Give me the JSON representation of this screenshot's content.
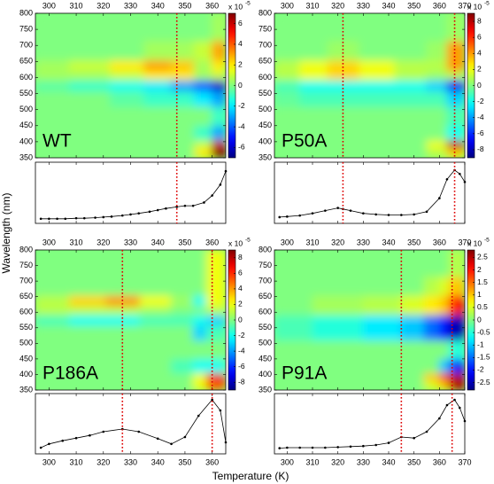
{
  "figure": {
    "xlabel": "Temperature (K)",
    "ylabel": "Wavelength (nm)"
  },
  "chart_data": [
    {
      "type": "heatmap",
      "label": "WT",
      "xlim": [
        295,
        365
      ],
      "xticks": [
        300,
        310,
        320,
        330,
        340,
        350,
        360
      ],
      "ylim": [
        350,
        800
      ],
      "yticks": [
        350,
        400,
        450,
        500,
        550,
        600,
        650,
        700,
        750,
        800
      ],
      "clim": [
        -7,
        7
      ],
      "cticks": [
        -6,
        -4,
        -2,
        0,
        2,
        4,
        6
      ],
      "colorbar_label": "x 10",
      "colorbar_exponent": "-5",
      "x": [
        300,
        315,
        330,
        340,
        350,
        357,
        363
      ],
      "y": [
        370,
        390,
        420,
        480,
        540,
        575,
        610,
        630,
        680,
        750
      ],
      "z": [
        [
          0,
          0,
          0,
          0,
          0,
          2,
          7
        ],
        [
          0,
          0,
          0,
          0,
          0,
          1,
          6
        ],
        [
          0,
          0,
          0,
          0,
          0,
          -1,
          -3
        ],
        [
          0,
          0,
          0,
          0,
          0,
          0,
          -1
        ],
        [
          0,
          0,
          -0.5,
          -1,
          -1,
          -2,
          -3
        ],
        [
          -0.5,
          -1,
          -1.5,
          -2,
          -3,
          -4,
          -6
        ],
        [
          0.5,
          0.5,
          1,
          2,
          2,
          0.5,
          1
        ],
        [
          0.5,
          1,
          2,
          3,
          2.5,
          0.5,
          2
        ],
        [
          0,
          0,
          0,
          0.5,
          0.5,
          1,
          3
        ],
        [
          0,
          0,
          0,
          0,
          0,
          0,
          0.5
        ]
      ],
      "markers": [
        347
      ],
      "marker_color": "#dd0000",
      "line": {
        "type": "line",
        "color": "#000000",
        "ylim": [
          0,
          1
        ],
        "x": [
          297,
          300,
          303,
          306,
          310,
          313,
          317,
          320,
          323,
          327,
          330,
          333,
          337,
          340,
          343,
          347,
          350,
          353,
          357,
          360,
          363,
          365
        ],
        "values": [
          0.02,
          0.02,
          0.02,
          0.02,
          0.03,
          0.03,
          0.04,
          0.05,
          0.06,
          0.08,
          0.1,
          0.12,
          0.15,
          0.18,
          0.21,
          0.24,
          0.26,
          0.26,
          0.32,
          0.45,
          0.65,
          0.9
        ]
      }
    },
    {
      "type": "heatmap",
      "label": "P50A",
      "xlim": [
        295,
        370
      ],
      "xticks": [
        300,
        310,
        320,
        330,
        340,
        350,
        360,
        370
      ],
      "ylim": [
        350,
        800
      ],
      "yticks": [
        350,
        400,
        450,
        500,
        550,
        600,
        650,
        700,
        750,
        800
      ],
      "clim": [
        -9,
        9
      ],
      "cticks": [
        -8,
        -6,
        -4,
        -2,
        0,
        2,
        4,
        6,
        8
      ],
      "colorbar_label": "x 10",
      "colorbar_exponent": "-5",
      "x": [
        300,
        310,
        322,
        335,
        350,
        360,
        366
      ],
      "y": [
        370,
        390,
        420,
        480,
        540,
        575,
        610,
        630,
        680,
        750
      ],
      "z": [
        [
          0,
          0,
          0,
          0,
          0,
          1,
          3
        ],
        [
          0,
          0,
          0,
          0,
          0,
          2,
          8
        ],
        [
          0,
          0,
          0,
          0,
          0,
          0,
          -2
        ],
        [
          0,
          0,
          0,
          0,
          0,
          0,
          -1
        ],
        [
          -0.5,
          -1,
          -1,
          -1,
          -1,
          -1,
          -3
        ],
        [
          -1,
          -2,
          -2,
          -2,
          -2,
          -3,
          -7
        ],
        [
          1,
          2,
          3,
          2,
          1,
          0.5,
          1
        ],
        [
          1,
          2,
          3,
          2,
          1,
          1,
          4
        ],
        [
          0,
          0,
          0.5,
          0,
          0,
          0.5,
          4
        ],
        [
          0,
          0,
          0,
          0,
          0,
          0,
          0.5
        ]
      ],
      "markers": [
        322,
        366
      ],
      "marker_color": "#dd0000",
      "line": {
        "type": "line",
        "color": "#000000",
        "ylim": [
          0,
          1
        ],
        "x": [
          297,
          300,
          305,
          310,
          315,
          320,
          322,
          325,
          330,
          335,
          340,
          345,
          350,
          355,
          360,
          363,
          366,
          368,
          370
        ],
        "values": [
          0.05,
          0.06,
          0.08,
          0.12,
          0.17,
          0.22,
          0.2,
          0.17,
          0.12,
          0.1,
          0.09,
          0.09,
          0.1,
          0.15,
          0.4,
          0.75,
          0.92,
          0.85,
          0.7
        ]
      }
    },
    {
      "type": "heatmap",
      "label": "P186A",
      "xlim": [
        295,
        365
      ],
      "xticks": [
        300,
        310,
        320,
        330,
        340,
        350,
        360
      ],
      "ylim": [
        350,
        800
      ],
      "yticks": [
        350,
        400,
        450,
        500,
        550,
        600,
        650,
        700,
        750,
        800
      ],
      "clim": [
        -9,
        9
      ],
      "cticks": [
        -8,
        -6,
        -4,
        -2,
        0,
        2,
        4,
        6,
        8
      ],
      "colorbar_label": "x 10",
      "colorbar_exponent": "-5",
      "x": [
        300,
        315,
        327,
        340,
        350,
        356,
        360
      ],
      "y": [
        370,
        390,
        420,
        480,
        540,
        575,
        610,
        630,
        680,
        750
      ],
      "z": [
        [
          0,
          0,
          0,
          0,
          0,
          2,
          5
        ],
        [
          0,
          0,
          0,
          0,
          0,
          2,
          7
        ],
        [
          0,
          0,
          0,
          0,
          -1,
          -2,
          -2
        ],
        [
          0,
          0,
          0,
          0,
          0,
          0,
          0
        ],
        [
          0,
          0,
          0,
          0,
          0,
          -3,
          -1
        ],
        [
          -1,
          -2,
          -2,
          -1,
          -1,
          -2,
          -3
        ],
        [
          1,
          1,
          1,
          0.5,
          0,
          0,
          1
        ],
        [
          1,
          3,
          4,
          2,
          0.5,
          -2,
          2
        ],
        [
          0,
          0,
          0,
          0,
          0,
          0,
          2
        ],
        [
          0,
          0,
          0,
          0,
          0,
          0,
          2
        ]
      ],
      "markers": [
        327,
        360
      ],
      "marker_color": "#dd0000",
      "line": {
        "type": "line",
        "color": "#000000",
        "ylim": [
          0,
          1
        ],
        "x": [
          297,
          300,
          305,
          310,
          315,
          320,
          327,
          333,
          340,
          345,
          350,
          355,
          360,
          363,
          365
        ],
        "values": [
          0.05,
          0.12,
          0.18,
          0.23,
          0.28,
          0.35,
          0.4,
          0.35,
          0.22,
          0.12,
          0.25,
          0.65,
          0.95,
          0.75,
          0.15
        ]
      }
    },
    {
      "type": "heatmap",
      "label": "P91A",
      "xlim": [
        295,
        370
      ],
      "xticks": [
        300,
        310,
        320,
        330,
        340,
        350,
        360,
        370
      ],
      "ylim": [
        350,
        800
      ],
      "yticks": [
        350,
        400,
        450,
        500,
        550,
        600,
        650,
        700,
        750,
        800
      ],
      "clim": [
        -2.8,
        2.8
      ],
      "cticks": [
        -2.5,
        -2,
        -1.5,
        -1,
        -0.5,
        0,
        0.5,
        1,
        1.5,
        2,
        2.5
      ],
      "colorbar_label": "x 10",
      "colorbar_exponent": "-5",
      "x": [
        300,
        320,
        340,
        350,
        358,
        362,
        366
      ],
      "y": [
        370,
        390,
        420,
        480,
        540,
        575,
        610,
        630,
        680,
        750
      ],
      "z": [
        [
          0,
          0,
          0,
          0,
          0.5,
          1,
          2.5
        ],
        [
          0,
          0,
          0,
          0,
          1,
          2,
          2.5
        ],
        [
          0,
          0,
          0,
          0,
          0,
          -1,
          -2
        ],
        [
          0,
          0,
          0,
          0,
          0,
          0,
          -0.5
        ],
        [
          -0.3,
          -0.5,
          -0.8,
          -1,
          -1.5,
          -2,
          -2.5
        ],
        [
          -0.3,
          -0.5,
          -0.8,
          -1,
          -1.5,
          -2,
          -2.5
        ],
        [
          0,
          0.2,
          0.3,
          0.5,
          0.8,
          1,
          2
        ],
        [
          0,
          0.2,
          0.3,
          0.5,
          0.8,
          1,
          2
        ],
        [
          0,
          0,
          0,
          0,
          0.3,
          0.5,
          1
        ],
        [
          0,
          0,
          0,
          0,
          0,
          0,
          0.3
        ]
      ],
      "markers": [
        345,
        365
      ],
      "marker_color": "#dd0000",
      "line": {
        "type": "line",
        "color": "#000000",
        "ylim": [
          0,
          1
        ],
        "x": [
          297,
          300,
          305,
          310,
          315,
          320,
          325,
          330,
          335,
          340,
          345,
          350,
          355,
          360,
          363,
          366,
          368,
          370
        ],
        "values": [
          0.04,
          0.05,
          0.05,
          0.05,
          0.05,
          0.06,
          0.07,
          0.08,
          0.1,
          0.14,
          0.25,
          0.23,
          0.35,
          0.6,
          0.85,
          0.95,
          0.8,
          0.55
        ]
      }
    }
  ]
}
